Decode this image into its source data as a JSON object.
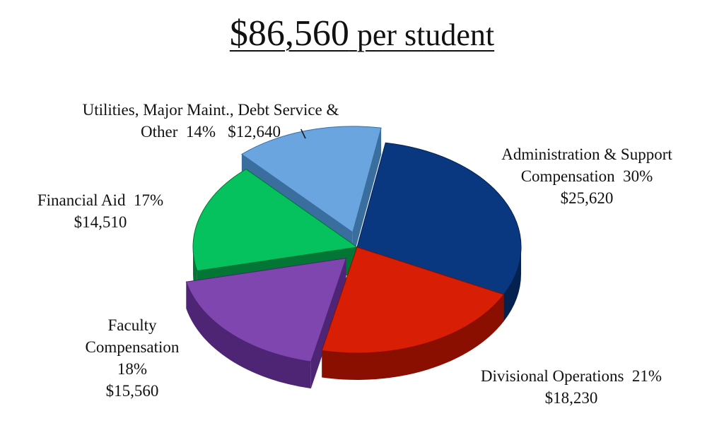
{
  "title": {
    "amount": "$86,560",
    "suffix": "per student"
  },
  "chart_data": {
    "type": "pie",
    "title": "$86,560 per student",
    "slices": [
      {
        "name": "Administration & Support Compensation",
        "label_line1": "Administration & Support",
        "label_line2": "Compensation  30%",
        "percent_label": "30%",
        "value": 25620,
        "value_label": "$25,620",
        "color": "#0a3880",
        "side_color": "#04214f",
        "exploded": false
      },
      {
        "name": "Divisional Operations",
        "label_line1": "Divisional Operations  21%",
        "percent_label": "21%",
        "value": 18230,
        "value_label": "$18,230",
        "color": "#d81e05",
        "side_color": "#8a0f00",
        "exploded": false
      },
      {
        "name": "Faculty Compensation",
        "label_line1": "Faculty",
        "label_line2": "Compensation",
        "percent_label": "18%",
        "value": 15560,
        "value_label": "$15,560",
        "color": "#7f46b0",
        "side_color": "#4e2474",
        "exploded": true
      },
      {
        "name": "Financial Aid",
        "label_line1": "Financial Aid  17%",
        "percent_label": "17%",
        "value": 14510,
        "value_label": "$14,510",
        "color": "#06c25e",
        "side_color": "#037534",
        "exploded": false
      },
      {
        "name": "Utilities, Major Maint., Debt Service & Other",
        "label_line1": "Utilities, Major Maint., Debt Service &",
        "label_line2": "Other  14%   $12,640",
        "percent_label": "14%",
        "value": 12640,
        "value_label": "$12,640",
        "color": "#6aa5e0",
        "side_color": "#3a6e9f",
        "exploded": true
      }
    ]
  }
}
